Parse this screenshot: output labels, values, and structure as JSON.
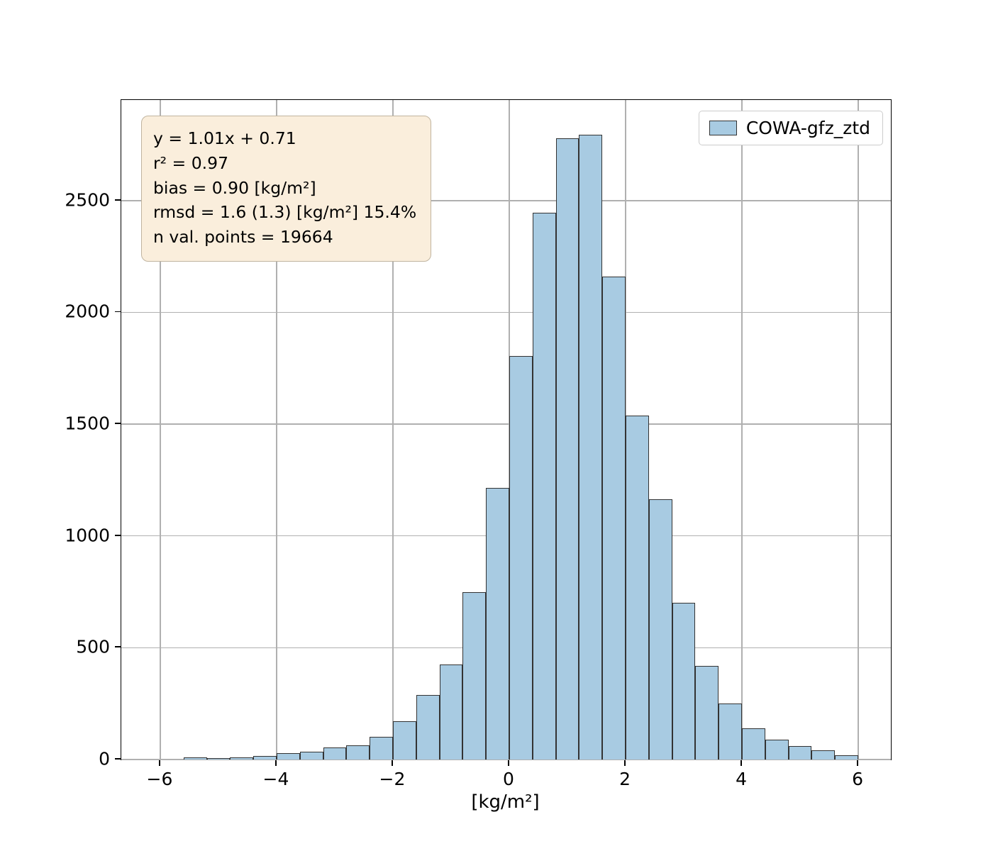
{
  "figure": {
    "stats_box": {
      "lines": [
        "y = 1.01x + 0.71",
        "r² = 0.97",
        "bias = 0.90 [kg/m²]",
        "rmsd = 1.6 (1.3) [kg/m²] 15.4%",
        "n val. points = 19664"
      ]
    }
  },
  "chart_data": {
    "type": "bar",
    "subtype": "histogram",
    "title": "",
    "xlabel": "[kg/m²]",
    "ylabel": "",
    "legend": {
      "label": "COWA-gfz_ztd",
      "position": "upper right"
    },
    "bin_start": -5.6,
    "bin_width": 0.4,
    "counts": [
      8,
      6,
      8,
      15,
      30,
      35,
      55,
      65,
      100,
      170,
      290,
      425,
      750,
      1215,
      1805,
      2445,
      2780,
      2795,
      2160,
      1540,
      1165,
      700,
      420,
      250,
      140,
      90,
      60,
      40,
      18
    ],
    "xlim": [
      -6.67,
      6.56
    ],
    "ylim": [
      0,
      2950
    ],
    "xticks": [
      -6,
      -4,
      -2,
      0,
      2,
      4,
      6
    ],
    "xtick_labels": [
      "−6",
      "−4",
      "−2",
      "0",
      "2",
      "4",
      "6"
    ],
    "yticks": [
      0,
      500,
      1000,
      1500,
      2000,
      2500
    ],
    "ytick_labels": [
      "0",
      "500",
      "1000",
      "1500",
      "2000",
      "2500"
    ],
    "grid": true,
    "colors": {
      "bar_fill": "#a8cbe2",
      "bar_edge": "#333333",
      "grid": "#b0b0b0",
      "stats_bg": "#faeedc",
      "stats_border": "#c0b49f",
      "legend_border": "#cccccc"
    }
  }
}
